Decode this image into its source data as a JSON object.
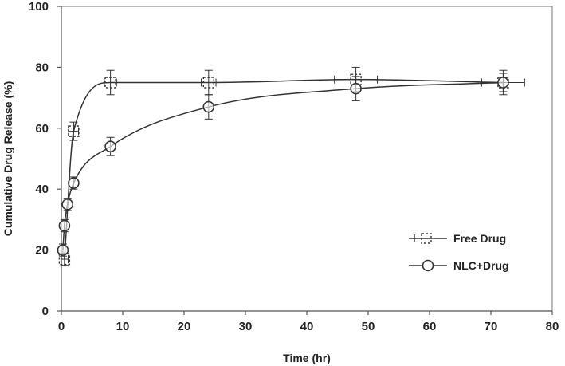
{
  "chart_data": {
    "type": "line",
    "title": "",
    "xlabel": "Time (hr)",
    "ylabel": "Cumulative Drug Release (%)",
    "xlim": [
      0,
      80
    ],
    "ylim": [
      0,
      100
    ],
    "xticks": [
      0,
      10,
      20,
      30,
      40,
      50,
      60,
      70,
      80
    ],
    "yticks": [
      0,
      20,
      40,
      60,
      80,
      100
    ],
    "grid": false,
    "legend_position": "bottom-right",
    "series": [
      {
        "name": "Free Drug",
        "marker": "dashed-square",
        "color": "#333333",
        "points": [
          {
            "x": 0.5,
            "y": 17,
            "xerr": 0.6,
            "yerr": 2
          },
          {
            "x": 2,
            "y": 59,
            "xerr": 0.8,
            "yerr": 3
          },
          {
            "x": 8,
            "y": 75,
            "xerr": 1.0,
            "yerr": 4
          },
          {
            "x": 24,
            "y": 75,
            "xerr": 1.2,
            "yerr": 4
          },
          {
            "x": 48,
            "y": 76,
            "xerr": 3.5,
            "yerr": 4
          },
          {
            "x": 72,
            "y": 75,
            "xerr": 3.5,
            "yerr": 3
          }
        ]
      },
      {
        "name": "NLC+Drug",
        "marker": "circle",
        "color": "#333333",
        "points": [
          {
            "x": 0.25,
            "y": 20,
            "xerr": 0,
            "yerr": 2
          },
          {
            "x": 0.5,
            "y": 28,
            "xerr": 0,
            "yerr": 2
          },
          {
            "x": 1,
            "y": 35,
            "xerr": 0,
            "yerr": 2
          },
          {
            "x": 2,
            "y": 42,
            "xerr": 0,
            "yerr": 2
          },
          {
            "x": 8,
            "y": 54,
            "xerr": 0,
            "yerr": 3
          },
          {
            "x": 24,
            "y": 67,
            "xerr": 0,
            "yerr": 4
          },
          {
            "x": 48,
            "y": 73,
            "xerr": 0,
            "yerr": 4
          },
          {
            "x": 72,
            "y": 75,
            "xerr": 0,
            "yerr": 4
          }
        ]
      }
    ]
  }
}
